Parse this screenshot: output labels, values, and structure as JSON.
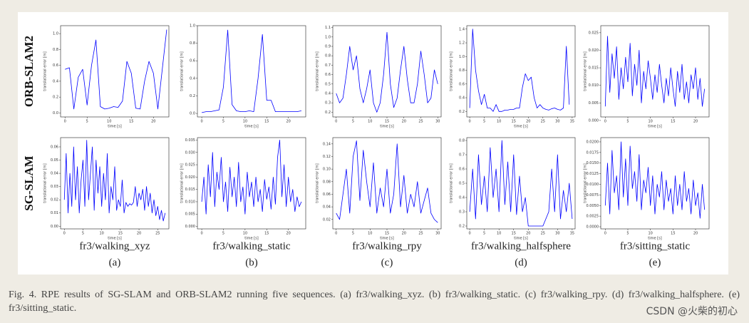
{
  "figure": {
    "row_labels": [
      "ORB-SLAM2",
      "SG-SLAM"
    ],
    "columns": [
      {
        "title": "fr3/walking_xyz",
        "letter": "(a)"
      },
      {
        "title": "fr3/walking_static",
        "letter": "(b)"
      },
      {
        "title": "fr3/walking_rpy",
        "letter": "(c)"
      },
      {
        "title": "fr3/walking_halfsphere",
        "letter": "(d)"
      },
      {
        "title": "fr3/sitting_static",
        "letter": "(e)"
      }
    ],
    "caption": "Fig. 4.    RPE results of SG-SLAM and ORB-SLAM2 running five sequences. (a) fr3/walking_xyz. (b) fr3/walking_static. (c) fr3/walking_rpy. (d) fr3/walking_halfsphere. (e) fr3/sitting_static.",
    "watermark": "CSDN @火柴的初心"
  },
  "chart_data": [
    {
      "type": "line",
      "xlabel": "time [s]",
      "ylabel": "translational error [m]",
      "x": [
        0,
        1,
        2,
        3,
        4,
        5,
        6,
        7,
        8,
        9,
        10,
        11,
        12,
        13,
        14,
        15,
        16,
        17,
        18,
        19,
        20,
        21,
        22,
        23
      ],
      "series": [
        {
          "color": "#0000ff",
          "values": [
            0.55,
            0.57,
            0.05,
            0.45,
            0.55,
            0.1,
            0.6,
            0.92,
            0.08,
            0.05,
            0.06,
            0.08,
            0.07,
            0.15,
            0.65,
            0.5,
            0.06,
            0.05,
            0.4,
            0.65,
            0.5,
            0.05,
            0.55,
            1.05
          ]
        }
      ],
      "xlim": [
        -1,
        23.5
      ],
      "ylim": [
        -0.05,
        1.1
      ],
      "xticks": [
        0,
        5,
        10,
        15,
        20
      ],
      "yticks": [
        {
          "value": 0,
          "label": "0.0"
        },
        0.2,
        0.4,
        0.6,
        0.8,
        {
          "value": 1,
          "label": "1.0"
        }
      ]
    },
    {
      "type": "line",
      "xlabel": "time [s]",
      "ylabel": "translational error [m]",
      "x": [
        0,
        1,
        2,
        3,
        4,
        5,
        6,
        7,
        8,
        9,
        10,
        11,
        12,
        13,
        14,
        15,
        16,
        17,
        18,
        19,
        20,
        21,
        22,
        23
      ],
      "series": [
        {
          "color": "#0000ff",
          "values": [
            0.01,
            0.02,
            0.02,
            0.03,
            0.04,
            0.3,
            0.95,
            0.1,
            0.03,
            0.02,
            0.02,
            0.03,
            0.02,
            0.4,
            0.9,
            0.15,
            0.15,
            0.02,
            0.02,
            0.02,
            0.02,
            0.02,
            0.02,
            0.03
          ]
        }
      ],
      "xlim": [
        -1,
        24
      ],
      "ylim": [
        -0.04,
        1.0
      ],
      "xticks": [
        0,
        5,
        10,
        15,
        20
      ],
      "yticks": [
        {
          "value": 0,
          "label": "0.0"
        },
        0.2,
        0.4,
        0.6,
        0.8,
        {
          "value": 1,
          "label": "1.0"
        }
      ]
    },
    {
      "type": "line",
      "xlabel": "time [s]",
      "ylabel": "translational error [m]",
      "x": [
        0,
        1,
        2,
        3,
        4,
        5,
        6,
        7,
        8,
        9,
        10,
        11,
        12,
        13,
        14,
        15,
        16,
        17,
        18,
        19,
        20,
        21,
        22,
        23,
        24,
        25,
        26,
        27,
        28,
        29,
        30
      ],
      "series": [
        {
          "color": "#0000ff",
          "values": [
            0.4,
            0.3,
            0.35,
            0.6,
            0.9,
            0.65,
            0.8,
            0.45,
            0.3,
            0.45,
            0.65,
            0.3,
            0.2,
            0.3,
            0.6,
            1.05,
            0.5,
            0.25,
            0.35,
            0.65,
            0.9,
            0.55,
            0.3,
            0.3,
            0.5,
            0.85,
            0.6,
            0.3,
            0.35,
            0.65,
            0.5
          ]
        }
      ],
      "xlim": [
        -1,
        31
      ],
      "ylim": [
        0.15,
        1.12
      ],
      "xticks": [
        0,
        5,
        10,
        15,
        20,
        25,
        30
      ],
      "yticks": [
        0.2,
        0.3,
        0.4,
        0.5,
        0.6,
        0.7,
        0.8,
        0.9,
        {
          "value": 1,
          "label": "1.0"
        },
        1.1
      ]
    },
    {
      "type": "line",
      "xlabel": "time [s]",
      "ylabel": "translational error [m]",
      "x": [
        0,
        1,
        2,
        3,
        4,
        5,
        6,
        7,
        8,
        9,
        10,
        11,
        12,
        13,
        14,
        15,
        16,
        17,
        18,
        19,
        20,
        21,
        22,
        23,
        24,
        25,
        26,
        27,
        28,
        29,
        30,
        31,
        32,
        33,
        34
      ],
      "series": [
        {
          "color": "#0000ff",
          "values": [
            0.25,
            1.4,
            0.8,
            0.5,
            0.3,
            0.45,
            0.25,
            0.25,
            0.2,
            0.3,
            0.2,
            0.2,
            0.22,
            0.22,
            0.23,
            0.23,
            0.25,
            0.25,
            0.55,
            0.75,
            0.65,
            0.7,
            0.4,
            0.25,
            0.3,
            0.25,
            0.23,
            0.22,
            0.24,
            0.25,
            0.23,
            0.22,
            0.25,
            1.15,
            0.3
          ]
        }
      ],
      "xlim": [
        -1,
        36
      ],
      "ylim": [
        0.12,
        1.45
      ],
      "xticks": [
        0,
        5,
        10,
        15,
        20,
        25,
        30,
        35
      ],
      "yticks": [
        0.2,
        0.4,
        0.6,
        0.8,
        {
          "value": 1,
          "label": "1.0"
        },
        1.2,
        1.4
      ]
    },
    {
      "type": "line",
      "xlabel": "time [s]",
      "ylabel": "translational error [m]",
      "x": [
        0,
        0.5,
        1,
        1.5,
        2,
        2.5,
        3,
        3.5,
        4,
        4.5,
        5,
        5.5,
        6,
        6.5,
        7,
        7.5,
        8,
        8.5,
        9,
        9.5,
        10,
        10.5,
        11,
        11.5,
        12,
        12.5,
        13,
        13.5,
        14,
        14.5,
        15,
        15.5,
        16,
        16.5,
        17,
        17.5,
        18,
        18.5,
        19,
        19.5,
        20,
        20.5,
        21,
        21.5,
        22
      ],
      "series": [
        {
          "color": "#0000ff",
          "values": [
            0.004,
            0.024,
            0.008,
            0.019,
            0.012,
            0.021,
            0.006,
            0.015,
            0.009,
            0.018,
            0.011,
            0.022,
            0.007,
            0.016,
            0.01,
            0.02,
            0.005,
            0.014,
            0.009,
            0.017,
            0.012,
            0.006,
            0.013,
            0.008,
            0.016,
            0.01,
            0.005,
            0.012,
            0.007,
            0.015,
            0.009,
            0.004,
            0.014,
            0.008,
            0.016,
            0.006,
            0.011,
            0.005,
            0.013,
            0.009,
            0.015,
            0.006,
            0.012,
            0.004,
            0.009
          ]
        }
      ],
      "xlim": [
        -1,
        23
      ],
      "ylim": [
        0.001,
        0.027
      ],
      "xticks": [
        0,
        5,
        10,
        15,
        20
      ],
      "yticks": [
        {
          "value": 0,
          "label": "0.000"
        },
        {
          "value": 0.005,
          "label": "0.005"
        },
        {
          "value": 0.01,
          "label": "0.010"
        },
        {
          "value": 0.015,
          "label": "0.015"
        },
        {
          "value": 0.02,
          "label": "0.020"
        },
        {
          "value": 0.025,
          "label": "0.025"
        }
      ]
    },
    {
      "type": "line",
      "xlabel": "time [s]",
      "ylabel": "translational error [m]",
      "x": [
        0,
        0.5,
        1,
        1.5,
        2,
        2.5,
        3,
        3.5,
        4,
        4.5,
        5,
        5.5,
        6,
        6.5,
        7,
        7.5,
        8,
        8.5,
        9,
        9.5,
        10,
        10.5,
        11,
        11.5,
        12,
        12.5,
        13,
        13.5,
        14,
        14.5,
        15,
        15.5,
        16,
        16.5,
        17,
        17.5,
        18,
        18.5,
        19,
        19.5,
        20,
        20.5,
        21,
        21.5,
        22,
        22.5,
        23,
        23.5,
        24,
        24.5,
        25,
        25.5,
        26,
        26.5,
        27
      ],
      "series": [
        {
          "color": "#0000ff",
          "values": [
            0.02,
            0.055,
            0.01,
            0.04,
            0.015,
            0.06,
            0.02,
            0.045,
            0.01,
            0.035,
            0.05,
            0.015,
            0.065,
            0.02,
            0.04,
            0.06,
            0.012,
            0.05,
            0.025,
            0.045,
            0.015,
            0.04,
            0.02,
            0.055,
            0.01,
            0.03,
            0.02,
            0.045,
            0.012,
            0.02,
            0.015,
            0.035,
            0.01,
            0.018,
            0.015,
            0.017,
            0.016,
            0.018,
            0.03,
            0.015,
            0.025,
            0.02,
            0.028,
            0.012,
            0.03,
            0.015,
            0.025,
            0.01,
            0.02,
            0.008,
            0.015,
            0.005,
            0.012,
            0.004,
            0.01
          ]
        }
      ],
      "xlim": [
        -1,
        28
      ],
      "ylim": [
        -0.002,
        0.067
      ],
      "xticks": [
        0,
        5,
        10,
        15,
        20,
        25
      ],
      "yticks": [
        {
          "value": 0,
          "label": "0.00"
        },
        0.01,
        0.02,
        0.03,
        0.04,
        0.05,
        0.06
      ]
    },
    {
      "type": "line",
      "xlabel": "time [s]",
      "ylabel": "translational error [m]",
      "x": [
        0,
        0.5,
        1,
        1.5,
        2,
        2.5,
        3,
        3.5,
        4,
        4.5,
        5,
        5.5,
        6,
        6.5,
        7,
        7.5,
        8,
        8.5,
        9,
        9.5,
        10,
        10.5,
        11,
        11.5,
        12,
        12.5,
        13,
        13.5,
        14,
        14.5,
        15,
        15.5,
        16,
        16.5,
        17,
        17.5,
        18,
        18.5,
        19,
        19.5,
        20,
        20.5,
        21,
        21.5,
        22,
        22.5,
        23
      ],
      "series": [
        {
          "color": "#0000ff",
          "values": [
            0.01,
            0.02,
            0.005,
            0.025,
            0.012,
            0.03,
            0.008,
            0.022,
            0.015,
            0.028,
            0.01,
            0.018,
            0.006,
            0.024,
            0.012,
            0.02,
            0.008,
            0.026,
            0.01,
            0.016,
            0.005,
            0.022,
            0.012,
            0.018,
            0.008,
            0.02,
            0.01,
            0.015,
            0.006,
            0.019,
            0.011,
            0.016,
            0.007,
            0.02,
            0.009,
            0.028,
            0.035,
            0.012,
            0.025,
            0.008,
            0.02,
            0.01,
            0.015,
            0.006,
            0.012,
            0.008,
            0.01
          ]
        }
      ],
      "xlim": [
        -1,
        24
      ],
      "ylim": [
        -0.001,
        0.036
      ],
      "xticks": [
        0,
        5,
        10,
        15,
        20
      ],
      "yticks": [
        {
          "value": 0,
          "label": "0.000"
        },
        {
          "value": 0.005,
          "label": "0.005"
        },
        {
          "value": 0.01,
          "label": "0.010"
        },
        {
          "value": 0.015,
          "label": "0.015"
        },
        {
          "value": 0.02,
          "label": "0.020"
        },
        {
          "value": 0.025,
          "label": "0.025"
        },
        {
          "value": 0.03,
          "label": "0.030"
        },
        {
          "value": 0.035,
          "label": "0.035"
        }
      ]
    },
    {
      "type": "line",
      "xlabel": "time [s]",
      "ylabel": "translational error [m]",
      "x": [
        0,
        1,
        2,
        3,
        4,
        5,
        6,
        7,
        8,
        9,
        10,
        11,
        12,
        13,
        14,
        15,
        16,
        17,
        18,
        19,
        20,
        21,
        22,
        23,
        24,
        25,
        26,
        27,
        28,
        29,
        30
      ],
      "series": [
        {
          "color": "#0000ff",
          "values": [
            0.03,
            0.02,
            0.06,
            0.1,
            0.03,
            0.12,
            0.145,
            0.05,
            0.13,
            0.08,
            0.04,
            0.11,
            0.03,
            0.07,
            0.04,
            0.1,
            0.03,
            0.06,
            0.14,
            0.04,
            0.09,
            0.03,
            0.06,
            0.04,
            0.08,
            0.03,
            0.05,
            0.07,
            0.03,
            0.02,
            0.015
          ]
        }
      ],
      "xlim": [
        -1,
        31
      ],
      "ylim": [
        0.005,
        0.15
      ],
      "xticks": [
        0,
        5,
        10,
        15,
        20,
        25,
        30
      ],
      "yticks": [
        0.02,
        0.04,
        0.06,
        0.08,
        {
          "value": 0.1,
          "label": "0.10"
        },
        0.12,
        0.14
      ]
    },
    {
      "type": "line",
      "xlabel": "time [s]",
      "ylabel": "translational error [m]",
      "x": [
        0,
        1,
        2,
        3,
        4,
        5,
        6,
        7,
        8,
        9,
        10,
        11,
        12,
        13,
        14,
        15,
        16,
        17,
        18,
        19,
        20,
        21,
        22,
        23,
        24,
        25,
        26,
        27,
        28,
        29,
        30,
        31,
        32,
        33,
        34,
        35
      ],
      "series": [
        {
          "color": "#0000ff",
          "values": [
            0.3,
            0.6,
            0.25,
            0.7,
            0.35,
            0.55,
            0.3,
            0.75,
            0.4,
            0.6,
            0.3,
            0.8,
            0.35,
            0.65,
            0.3,
            0.7,
            0.28,
            0.55,
            0.3,
            0.4,
            0.2,
            0.2,
            0.2,
            0.2,
            0.2,
            0.2,
            0.25,
            0.3,
            0.6,
            0.3,
            0.7,
            0.25,
            0.45,
            0.3,
            0.5,
            0.25
          ]
        }
      ],
      "xlim": [
        -1,
        36
      ],
      "ylim": [
        0.18,
        0.82
      ],
      "xticks": [
        0,
        5,
        10,
        15,
        20,
        25,
        30,
        35
      ],
      "yticks": [
        0.2,
        0.3,
        0.4,
        0.5,
        0.6,
        0.7,
        0.8
      ]
    },
    {
      "type": "line",
      "xlabel": "time [s]",
      "ylabel": "translational error [m]",
      "x": [
        0,
        0.5,
        1,
        1.5,
        2,
        2.5,
        3,
        3.5,
        4,
        4.5,
        5,
        5.5,
        6,
        6.5,
        7,
        7.5,
        8,
        8.5,
        9,
        9.5,
        10,
        10.5,
        11,
        11.5,
        12,
        12.5,
        13,
        13.5,
        14,
        14.5,
        15,
        15.5,
        16,
        16.5,
        17,
        17.5,
        18,
        18.5,
        19,
        19.5,
        20,
        20.5,
        21,
        21.5,
        22
      ],
      "series": [
        {
          "color": "#0000ff",
          "values": [
            0.005,
            0.015,
            0.003,
            0.018,
            0.008,
            0.012,
            0.004,
            0.02,
            0.007,
            0.016,
            0.005,
            0.019,
            0.009,
            0.013,
            0.006,
            0.017,
            0.004,
            0.011,
            0.008,
            0.014,
            0.005,
            0.012,
            0.003,
            0.01,
            0.007,
            0.013,
            0.004,
            0.011,
            0.006,
            0.009,
            0.003,
            0.012,
            0.005,
            0.01,
            0.004,
            0.013,
            0.006,
            0.009,
            0.003,
            0.011,
            0.005,
            0.008,
            0.002,
            0.01,
            0.004
          ]
        }
      ],
      "xlim": [
        -1,
        23
      ],
      "ylim": [
        -0.0005,
        0.021
      ],
      "xticks": [
        0,
        5,
        10,
        15,
        20
      ],
      "yticks": [
        {
          "value": 0,
          "label": "0.0000"
        },
        {
          "value": 0.0025,
          "label": "0.0025"
        },
        {
          "value": 0.005,
          "label": "0.0050"
        },
        {
          "value": 0.0075,
          "label": "0.0075"
        },
        {
          "value": 0.01,
          "label": "0.0100"
        },
        {
          "value": 0.0125,
          "label": "0.0125"
        },
        {
          "value": 0.015,
          "label": "0.0150"
        },
        {
          "value": 0.0175,
          "label": "0.0175"
        },
        {
          "value": 0.02,
          "label": "0.0200"
        }
      ]
    }
  ]
}
